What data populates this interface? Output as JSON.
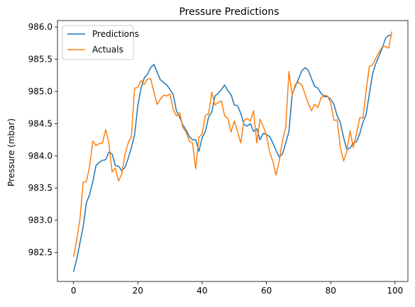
{
  "chart_data": {
    "type": "line",
    "title": "Pressure Predictions",
    "xlabel": "",
    "ylabel": "Pressure (mbar)",
    "xlim": [
      -5,
      104
    ],
    "ylim": [
      982.05,
      986.1
    ],
    "xticks": [
      0,
      20,
      40,
      60,
      80,
      100
    ],
    "yticks": [
      982.5,
      983.0,
      983.5,
      984.0,
      984.5,
      985.0,
      985.5,
      986.0
    ],
    "ytick_labels": [
      "982.5",
      "983.0",
      "983.5",
      "984.0",
      "984.5",
      "985.0",
      "985.5",
      "986.0"
    ],
    "grid": false,
    "legend": "top-left",
    "colors": {
      "Predictions": "#1f77b4",
      "Actuals": "#ff7f0e"
    },
    "x": [
      0,
      1,
      2,
      3,
      4,
      5,
      6,
      7,
      8,
      9,
      10,
      11,
      12,
      13,
      14,
      15,
      16,
      17,
      18,
      19,
      20,
      21,
      22,
      23,
      24,
      25,
      26,
      27,
      28,
      29,
      30,
      31,
      32,
      33,
      34,
      35,
      36,
      37,
      38,
      39,
      40,
      41,
      42,
      43,
      44,
      45,
      46,
      47,
      48,
      49,
      50,
      51,
      52,
      53,
      54,
      55,
      56,
      57,
      58,
      59,
      60,
      61,
      62,
      63,
      64,
      65,
      66,
      67,
      68,
      69,
      70,
      71,
      72,
      73,
      74,
      75,
      76,
      77,
      78,
      79,
      80,
      81,
      82,
      83,
      84,
      85,
      86,
      87,
      88,
      89,
      90,
      91,
      92,
      93,
      94,
      95,
      96,
      97,
      98,
      99
    ],
    "series": [
      {
        "name": "Predictions",
        "values": [
          982.2,
          982.4,
          982.65,
          982.9,
          983.27,
          983.4,
          983.6,
          983.85,
          983.9,
          983.93,
          983.94,
          984.06,
          984.03,
          983.85,
          983.84,
          983.77,
          983.82,
          983.96,
          984.13,
          984.33,
          984.78,
          985.05,
          985.21,
          985.27,
          985.37,
          985.42,
          985.3,
          985.18,
          985.14,
          985.1,
          985.03,
          984.95,
          984.7,
          984.6,
          984.48,
          984.4,
          984.3,
          984.25,
          984.25,
          984.07,
          984.28,
          984.38,
          984.6,
          984.68,
          984.93,
          984.97,
          985.03,
          985.1,
          985.01,
          984.95,
          984.79,
          984.78,
          984.66,
          984.49,
          984.46,
          984.5,
          984.38,
          984.42,
          984.25,
          984.35,
          984.33,
          984.3,
          984.2,
          984.08,
          983.98,
          984.03,
          984.2,
          984.38,
          984.95,
          985.08,
          985.2,
          985.32,
          985.37,
          985.33,
          985.2,
          985.08,
          985.05,
          984.97,
          984.92,
          984.92,
          984.88,
          984.8,
          984.62,
          984.52,
          984.28,
          984.1,
          984.12,
          984.2,
          984.22,
          984.34,
          984.52,
          984.64,
          984.96,
          985.27,
          985.43,
          985.55,
          985.67,
          985.82,
          985.87,
          985.87
        ]
      },
      {
        "name": "Actuals",
        "values": [
          982.43,
          982.7,
          983.02,
          983.59,
          983.6,
          983.84,
          984.23,
          984.16,
          984.19,
          984.2,
          984.41,
          984.19,
          983.75,
          983.81,
          983.61,
          983.72,
          984.02,
          984.2,
          984.3,
          985.05,
          985.06,
          985.17,
          985.11,
          985.19,
          985.2,
          984.99,
          984.8,
          984.88,
          984.94,
          984.93,
          984.96,
          984.72,
          984.62,
          984.67,
          984.44,
          984.37,
          984.23,
          984.2,
          983.8,
          984.29,
          984.34,
          984.63,
          984.65,
          984.99,
          984.79,
          984.83,
          984.85,
          984.62,
          984.58,
          984.37,
          984.54,
          984.38,
          984.2,
          984.55,
          984.58,
          984.54,
          984.7,
          984.2,
          984.57,
          984.46,
          984.32,
          984.06,
          983.91,
          983.7,
          983.93,
          984.24,
          984.44,
          985.31,
          984.94,
          985.11,
          985.14,
          985.1,
          984.96,
          984.81,
          984.7,
          984.8,
          984.75,
          984.9,
          984.94,
          984.93,
          984.82,
          984.55,
          984.56,
          984.13,
          983.92,
          984.07,
          984.39,
          984.13,
          984.34,
          984.59,
          984.59,
          985.0,
          985.39,
          985.41,
          985.51,
          985.61,
          985.69,
          985.7,
          985.67,
          985.93
        ]
      }
    ]
  }
}
